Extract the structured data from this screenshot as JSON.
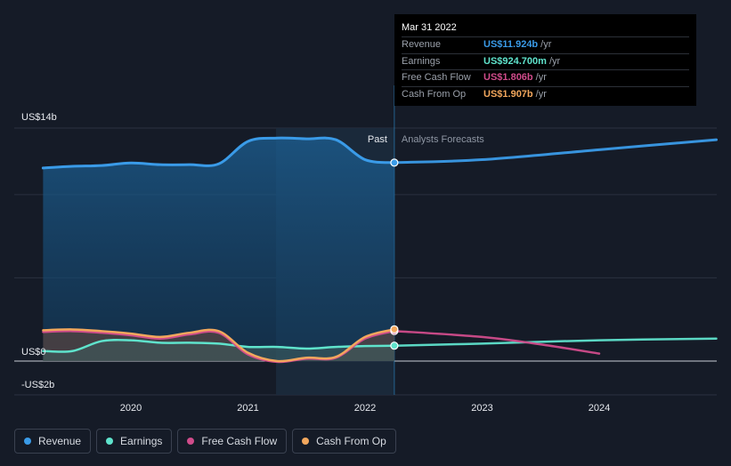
{
  "tooltip": {
    "date": "Mar 31 2022",
    "rows": [
      {
        "label": "Revenue",
        "value": "US$11.924b",
        "unit": "/yr",
        "color": "#3a9be8"
      },
      {
        "label": "Earnings",
        "value": "US$924.700m",
        "unit": "/yr",
        "color": "#5fe3cc"
      },
      {
        "label": "Free Cash Flow",
        "value": "US$1.806b",
        "unit": "/yr",
        "color": "#d04c8b"
      },
      {
        "label": "Cash From Op",
        "value": "US$1.907b",
        "unit": "/yr",
        "color": "#f2a75d"
      }
    ]
  },
  "legend": [
    {
      "label": "Revenue",
      "color": "#3a9be8"
    },
    {
      "label": "Earnings",
      "color": "#5fe3cc"
    },
    {
      "label": "Free Cash Flow",
      "color": "#d04c8b"
    },
    {
      "label": "Cash From Op",
      "color": "#f2a75d"
    }
  ],
  "chart_data": {
    "type": "line",
    "ylim": [
      -2,
      14
    ],
    "y_tick_labels": [
      {
        "value": 14,
        "label": "US$14b"
      },
      {
        "value": 0,
        "label": "US$0"
      },
      {
        "value": -2,
        "label": "-US$2b"
      }
    ],
    "x_tick_labels": [
      "2020",
      "2021",
      "2022",
      "2023",
      "2024"
    ],
    "past_label": "Past",
    "forecast_label": "Analysts Forecasts",
    "divider_date": 2022.25,
    "series": [
      {
        "name": "Revenue",
        "color": "#3a9be8",
        "points": [
          [
            2019.25,
            11.6
          ],
          [
            2019.5,
            11.7
          ],
          [
            2019.75,
            11.75
          ],
          [
            2020.0,
            11.9
          ],
          [
            2020.25,
            11.8
          ],
          [
            2020.5,
            11.8
          ],
          [
            2020.75,
            11.85
          ],
          [
            2021.0,
            13.2
          ],
          [
            2021.25,
            13.4
          ],
          [
            2021.5,
            13.35
          ],
          [
            2021.75,
            13.3
          ],
          [
            2022.0,
            12.1
          ],
          [
            2022.25,
            11.924
          ]
        ],
        "forecast": [
          [
            2022.25,
            11.924
          ],
          [
            2023.0,
            12.1
          ],
          [
            2024.0,
            12.7
          ],
          [
            2025.0,
            13.3
          ]
        ]
      },
      {
        "name": "Earnings",
        "color": "#5fe3cc",
        "points": [
          [
            2019.25,
            0.6
          ],
          [
            2019.5,
            0.6
          ],
          [
            2019.75,
            1.2
          ],
          [
            2020.0,
            1.25
          ],
          [
            2020.25,
            1.1
          ],
          [
            2020.5,
            1.1
          ],
          [
            2020.75,
            1.05
          ],
          [
            2021.0,
            0.85
          ],
          [
            2021.25,
            0.85
          ],
          [
            2021.5,
            0.75
          ],
          [
            2021.75,
            0.85
          ],
          [
            2022.0,
            0.9
          ],
          [
            2022.25,
            0.9247
          ]
        ],
        "forecast": [
          [
            2022.25,
            0.9247
          ],
          [
            2023.0,
            1.05
          ],
          [
            2024.0,
            1.25
          ],
          [
            2025.0,
            1.35
          ]
        ]
      },
      {
        "name": "Free Cash Flow",
        "color": "#d04c8b",
        "points": [
          [
            2019.25,
            1.75
          ],
          [
            2019.5,
            1.8
          ],
          [
            2019.75,
            1.7
          ],
          [
            2020.0,
            1.55
          ],
          [
            2020.25,
            1.35
          ],
          [
            2020.5,
            1.6
          ],
          [
            2020.75,
            1.7
          ],
          [
            2021.0,
            0.4
          ],
          [
            2021.25,
            -0.05
          ],
          [
            2021.5,
            0.15
          ],
          [
            2021.75,
            0.2
          ],
          [
            2022.0,
            1.35
          ],
          [
            2022.25,
            1.806
          ]
        ],
        "forecast": [
          [
            2022.25,
            1.806
          ],
          [
            2023.0,
            1.45
          ],
          [
            2023.5,
            1.0
          ],
          [
            2024.0,
            0.45
          ]
        ]
      },
      {
        "name": "Cash From Op",
        "color": "#f2a75d",
        "points": [
          [
            2019.25,
            1.85
          ],
          [
            2019.5,
            1.9
          ],
          [
            2019.75,
            1.8
          ],
          [
            2020.0,
            1.65
          ],
          [
            2020.25,
            1.45
          ],
          [
            2020.5,
            1.7
          ],
          [
            2020.75,
            1.8
          ],
          [
            2021.0,
            0.5
          ],
          [
            2021.25,
            0.0
          ],
          [
            2021.5,
            0.2
          ],
          [
            2021.75,
            0.25
          ],
          [
            2022.0,
            1.45
          ],
          [
            2022.25,
            1.907
          ]
        ]
      }
    ]
  }
}
